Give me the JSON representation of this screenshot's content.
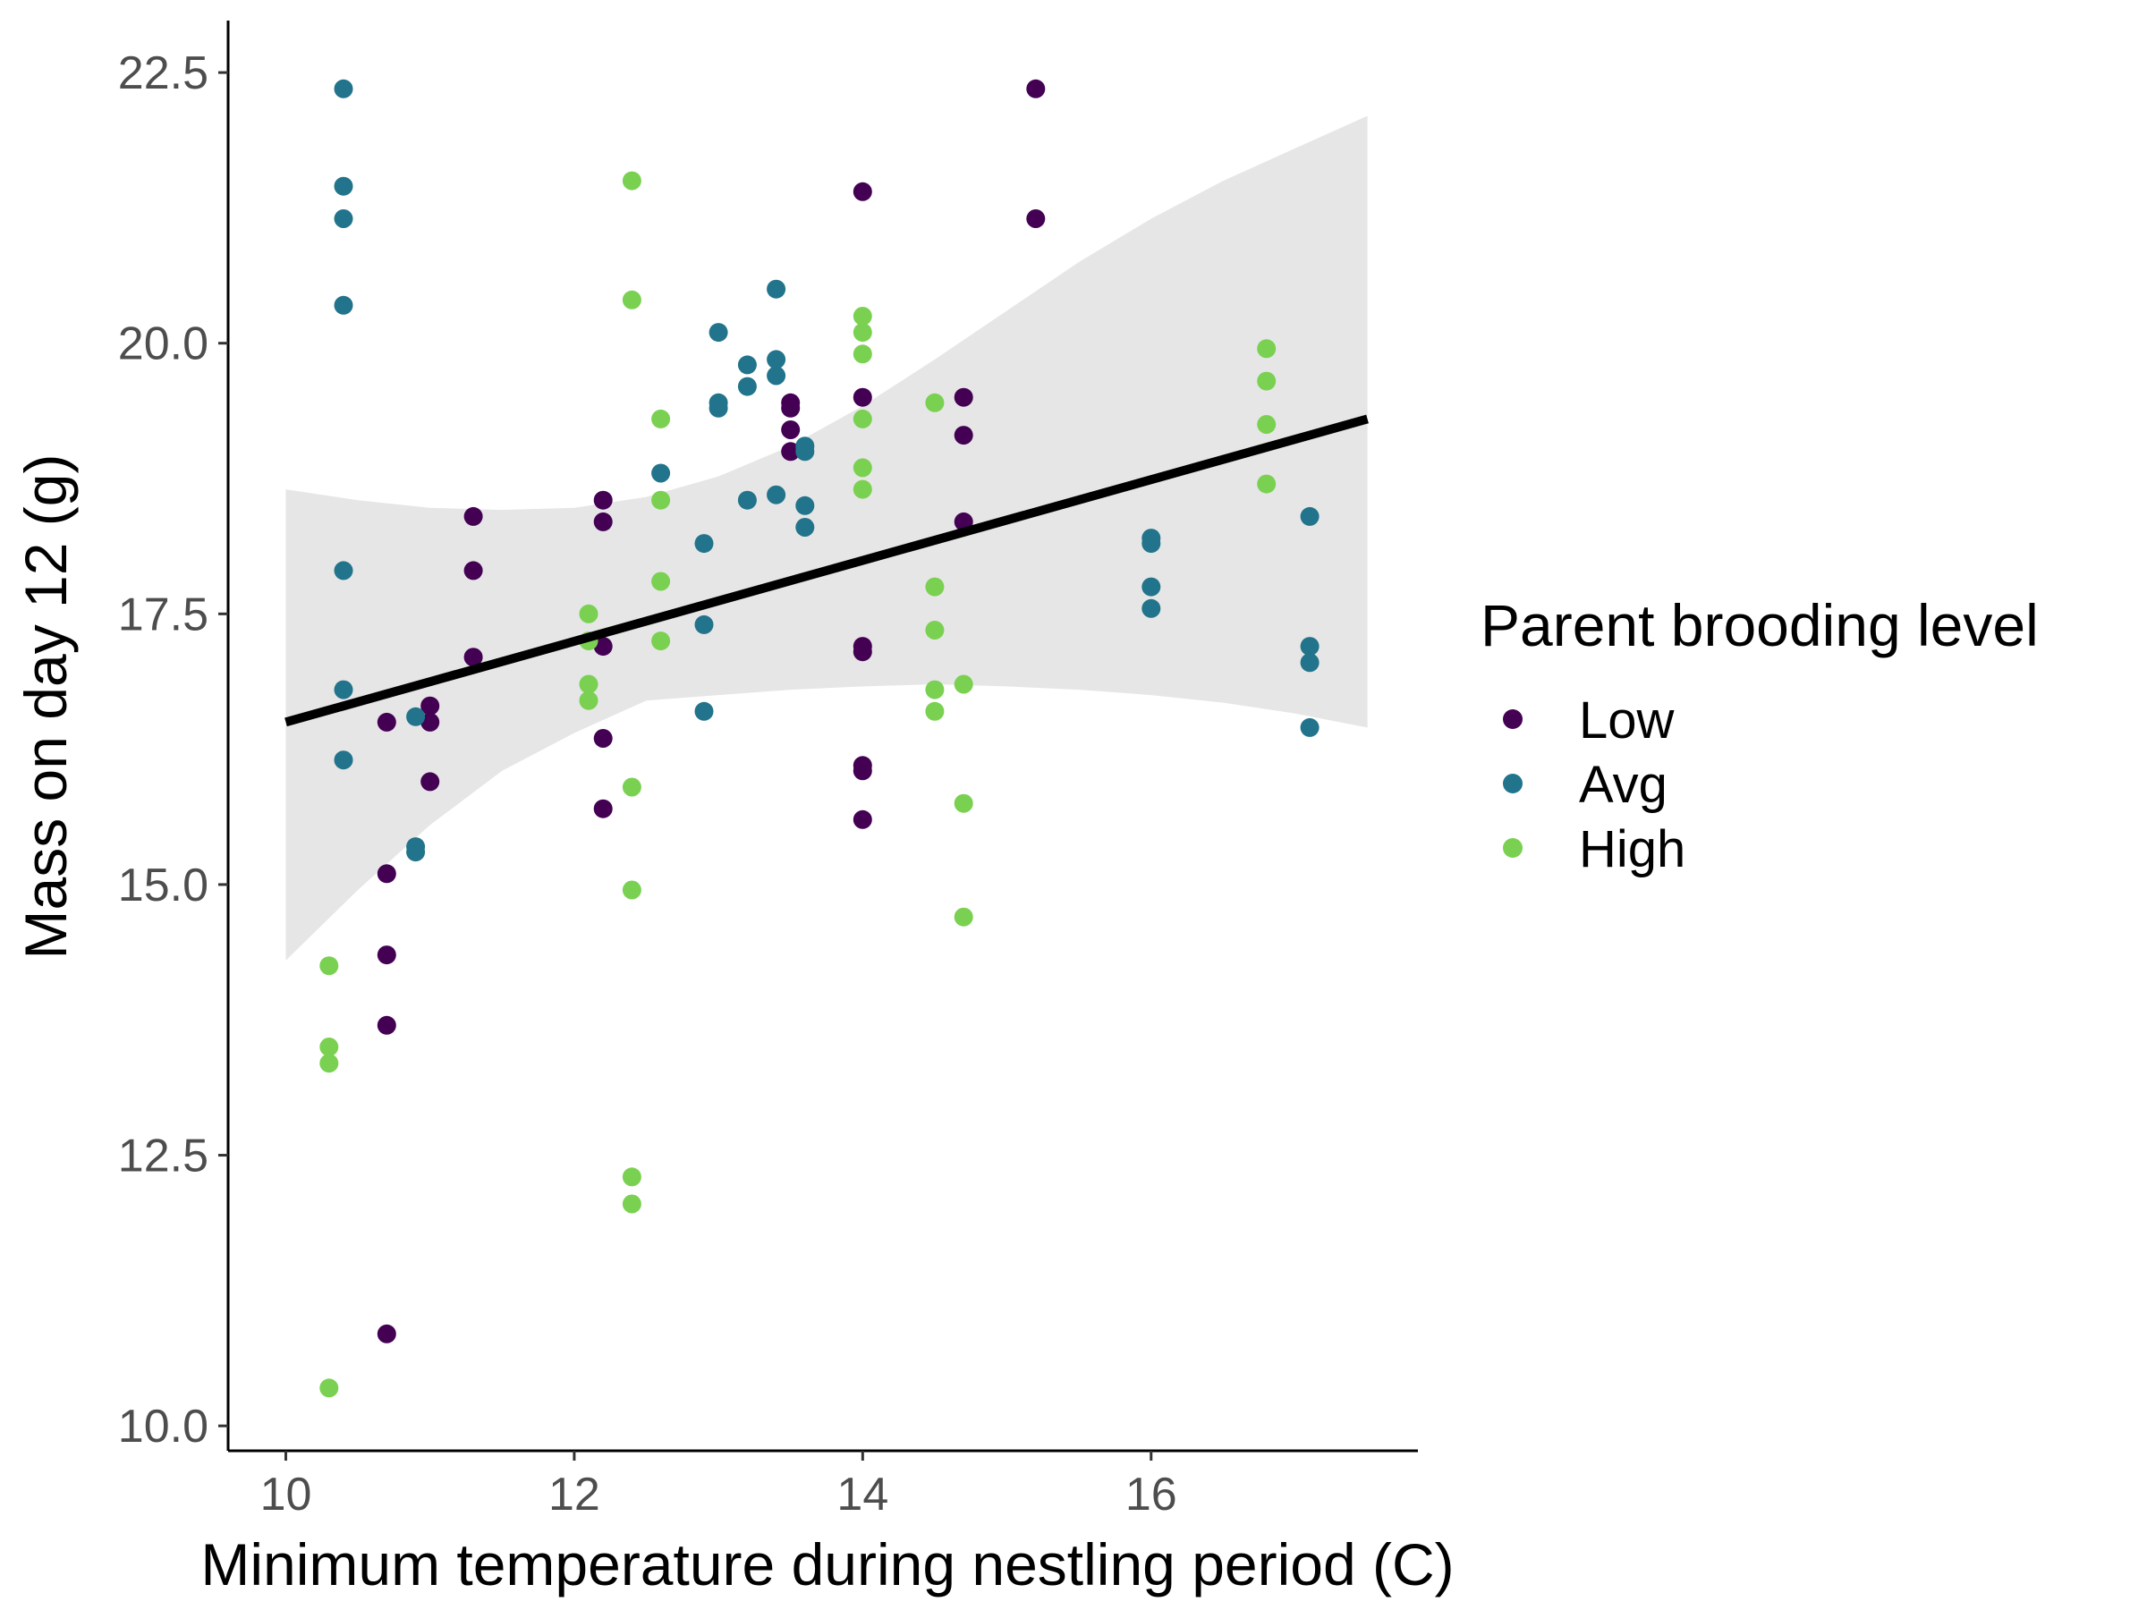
{
  "chart_data": {
    "type": "scatter",
    "xlabel": "Minimum temperature during nestling period (C)",
    "ylabel": "Mass on day 12 (g)",
    "xlim": [
      9.6,
      17.85
    ],
    "ylim": [
      9.77,
      22.98
    ],
    "xticks": [
      10,
      12,
      14,
      16
    ],
    "xtick_labels": [
      "10",
      "12",
      "14",
      "16"
    ],
    "yticks": [
      10.0,
      12.5,
      15.0,
      17.5,
      20.0,
      22.5
    ],
    "ytick_labels": [
      "10.0",
      "12.5",
      "15.0",
      "17.5",
      "20.0",
      "22.5"
    ],
    "grid": false,
    "legend": {
      "title": "Parent brooding level",
      "position": "right",
      "entries": [
        "Low",
        "Avg",
        "High"
      ]
    },
    "colors": {
      "Low": "#440154",
      "Avg": "#21748b",
      "High": "#7ad151",
      "fit": "#000000",
      "band": "#e6e6e6"
    },
    "series": [
      {
        "name": "Low",
        "color": "#440154",
        "points": [
          [
            10.7,
            16.5
          ],
          [
            10.7,
            15.1
          ],
          [
            10.7,
            14.35
          ],
          [
            10.7,
            13.7
          ],
          [
            10.7,
            10.85
          ],
          [
            11.0,
            16.65
          ],
          [
            11.0,
            16.5
          ],
          [
            11.0,
            15.95
          ],
          [
            11.3,
            18.4
          ],
          [
            11.3,
            17.9
          ],
          [
            11.3,
            17.1
          ],
          [
            12.2,
            18.55
          ],
          [
            12.2,
            18.35
          ],
          [
            12.2,
            17.2
          ],
          [
            12.2,
            16.35
          ],
          [
            12.2,
            15.7
          ],
          [
            13.5,
            19.45
          ],
          [
            13.5,
            19.4
          ],
          [
            13.5,
            19.2
          ],
          [
            13.5,
            19.0
          ],
          [
            14.0,
            21.4
          ],
          [
            14.0,
            19.5
          ],
          [
            14.0,
            17.2
          ],
          [
            14.0,
            17.15
          ],
          [
            14.0,
            16.1
          ],
          [
            14.0,
            16.05
          ],
          [
            14.0,
            15.6
          ],
          [
            14.7,
            19.5
          ],
          [
            14.7,
            19.15
          ],
          [
            14.7,
            18.35
          ],
          [
            15.2,
            22.35
          ],
          [
            15.2,
            21.15
          ]
        ]
      },
      {
        "name": "Avg",
        "color": "#21748b",
        "points": [
          [
            10.4,
            22.35
          ],
          [
            10.4,
            21.45
          ],
          [
            10.4,
            21.15
          ],
          [
            10.4,
            20.35
          ],
          [
            10.4,
            17.9
          ],
          [
            10.4,
            16.8
          ],
          [
            10.4,
            16.15
          ],
          [
            10.9,
            16.55
          ],
          [
            10.9,
            15.35
          ],
          [
            10.9,
            15.3
          ],
          [
            12.6,
            18.8
          ],
          [
            12.9,
            18.15
          ],
          [
            12.9,
            17.4
          ],
          [
            12.9,
            16.6
          ],
          [
            13.0,
            20.1
          ],
          [
            13.0,
            19.45
          ],
          [
            13.0,
            19.4
          ],
          [
            13.2,
            19.8
          ],
          [
            13.2,
            19.6
          ],
          [
            13.2,
            18.55
          ],
          [
            13.4,
            20.5
          ],
          [
            13.4,
            19.85
          ],
          [
            13.4,
            19.7
          ],
          [
            13.4,
            18.6
          ],
          [
            13.6,
            19.05
          ],
          [
            13.6,
            19.0
          ],
          [
            13.6,
            18.5
          ],
          [
            13.6,
            18.3
          ],
          [
            16.0,
            18.2
          ],
          [
            16.0,
            18.15
          ],
          [
            16.0,
            17.75
          ],
          [
            16.0,
            17.55
          ],
          [
            17.1,
            18.4
          ],
          [
            17.1,
            17.2
          ],
          [
            17.1,
            17.05
          ],
          [
            17.1,
            16.45
          ]
        ]
      },
      {
        "name": "High",
        "color": "#7ad151",
        "points": [
          [
            10.3,
            14.25
          ],
          [
            10.3,
            13.5
          ],
          [
            10.3,
            13.35
          ],
          [
            10.3,
            10.35
          ],
          [
            12.1,
            17.5
          ],
          [
            12.1,
            17.25
          ],
          [
            12.1,
            16.85
          ],
          [
            12.1,
            16.7
          ],
          [
            12.4,
            21.5
          ],
          [
            12.4,
            20.4
          ],
          [
            12.4,
            15.9
          ],
          [
            12.4,
            14.95
          ],
          [
            12.4,
            12.3
          ],
          [
            12.4,
            12.05
          ],
          [
            12.6,
            19.3
          ],
          [
            12.6,
            18.55
          ],
          [
            12.6,
            17.8
          ],
          [
            12.6,
            17.25
          ],
          [
            14.0,
            20.25
          ],
          [
            14.0,
            20.1
          ],
          [
            14.0,
            19.9
          ],
          [
            14.0,
            19.3
          ],
          [
            14.0,
            18.85
          ],
          [
            14.0,
            18.65
          ],
          [
            14.5,
            19.45
          ],
          [
            14.5,
            17.75
          ],
          [
            14.5,
            17.35
          ],
          [
            14.5,
            16.8
          ],
          [
            14.5,
            16.6
          ],
          [
            14.7,
            16.85
          ],
          [
            14.7,
            15.75
          ],
          [
            14.7,
            14.7
          ],
          [
            16.8,
            19.95
          ],
          [
            16.8,
            19.65
          ],
          [
            16.8,
            19.25
          ],
          [
            16.8,
            18.7
          ]
        ]
      }
    ],
    "fit_line": {
      "x": [
        10.0,
        17.5
      ],
      "y": [
        16.5,
        19.3
      ]
    },
    "confidence_band": {
      "x": [
        10.0,
        10.5,
        11.0,
        11.5,
        12.0,
        12.5,
        13.0,
        13.5,
        14.0,
        14.5,
        15.0,
        15.5,
        16.0,
        16.5,
        17.0,
        17.5
      ],
      "upper": [
        18.65,
        18.55,
        18.48,
        18.46,
        18.48,
        18.58,
        18.77,
        19.05,
        19.42,
        19.85,
        20.3,
        20.75,
        21.15,
        21.5,
        21.8,
        22.1
      ],
      "lower": [
        14.3,
        14.95,
        15.55,
        16.05,
        16.4,
        16.7,
        16.75,
        16.8,
        16.83,
        16.85,
        16.83,
        16.8,
        16.75,
        16.68,
        16.58,
        16.45
      ]
    }
  }
}
